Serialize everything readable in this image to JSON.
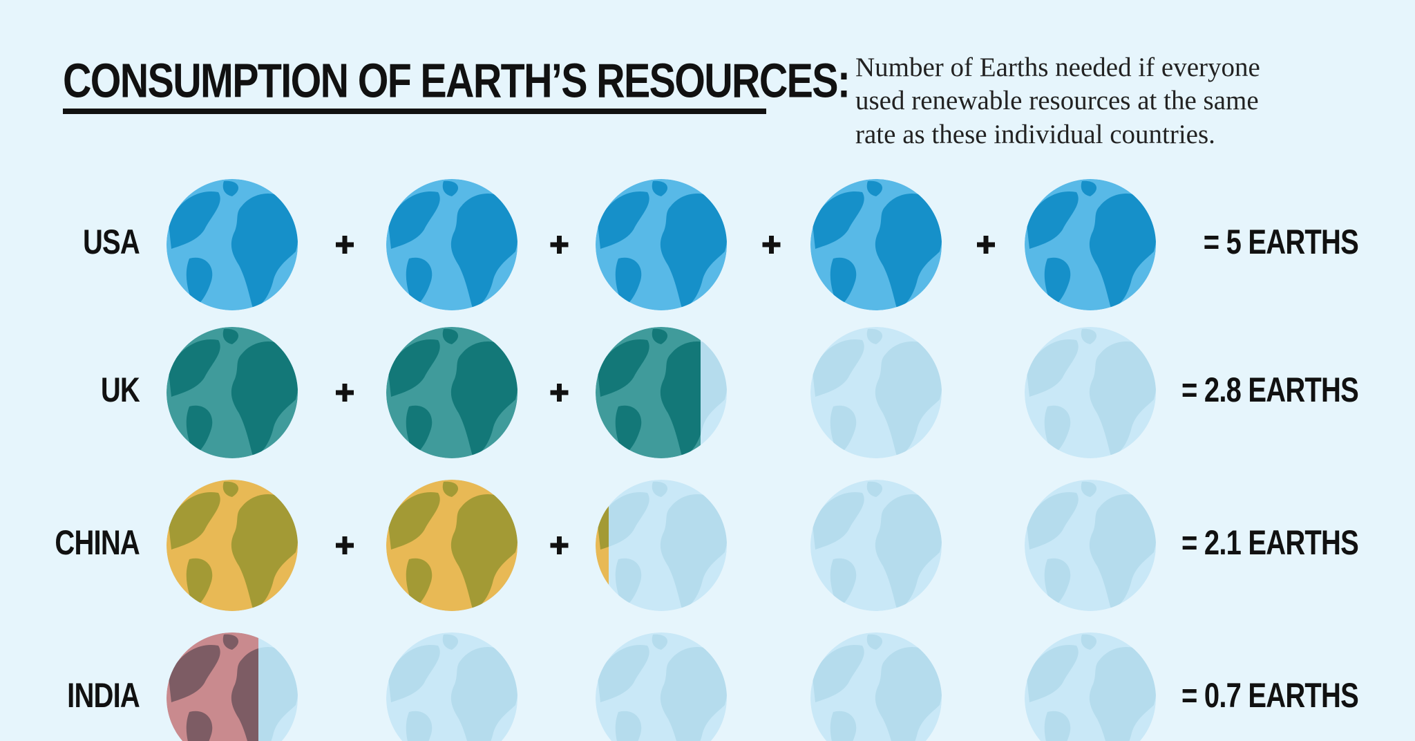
{
  "chart_data": {
    "type": "pictograph",
    "title": "CONSUMPTION OF EARTH’S RESOURCES:",
    "subtitle": [
      "Number of Earths needed if everyone",
      "used renewable resources at the same",
      "rate as these individual countries."
    ],
    "categories": [
      "USA",
      "UK",
      "CHINA",
      "INDIA"
    ],
    "values": [
      5,
      2.8,
      2.1,
      0.7
    ],
    "value_labels": [
      "= 5 EARTHS",
      "= 2.8 EARTHS",
      "= 2.1 EARTHS",
      "= 0.7 EARTHS"
    ],
    "colors": [
      "#58b9e7",
      "#409b9b",
      "#e8b955",
      "#c98a8e"
    ],
    "land_colors": [
      "#1690c9",
      "#137878",
      "#a39a35",
      "#7d5c64"
    ],
    "empty_color": "#c9e8f7",
    "empty_land_color": "#b5dced"
  }
}
